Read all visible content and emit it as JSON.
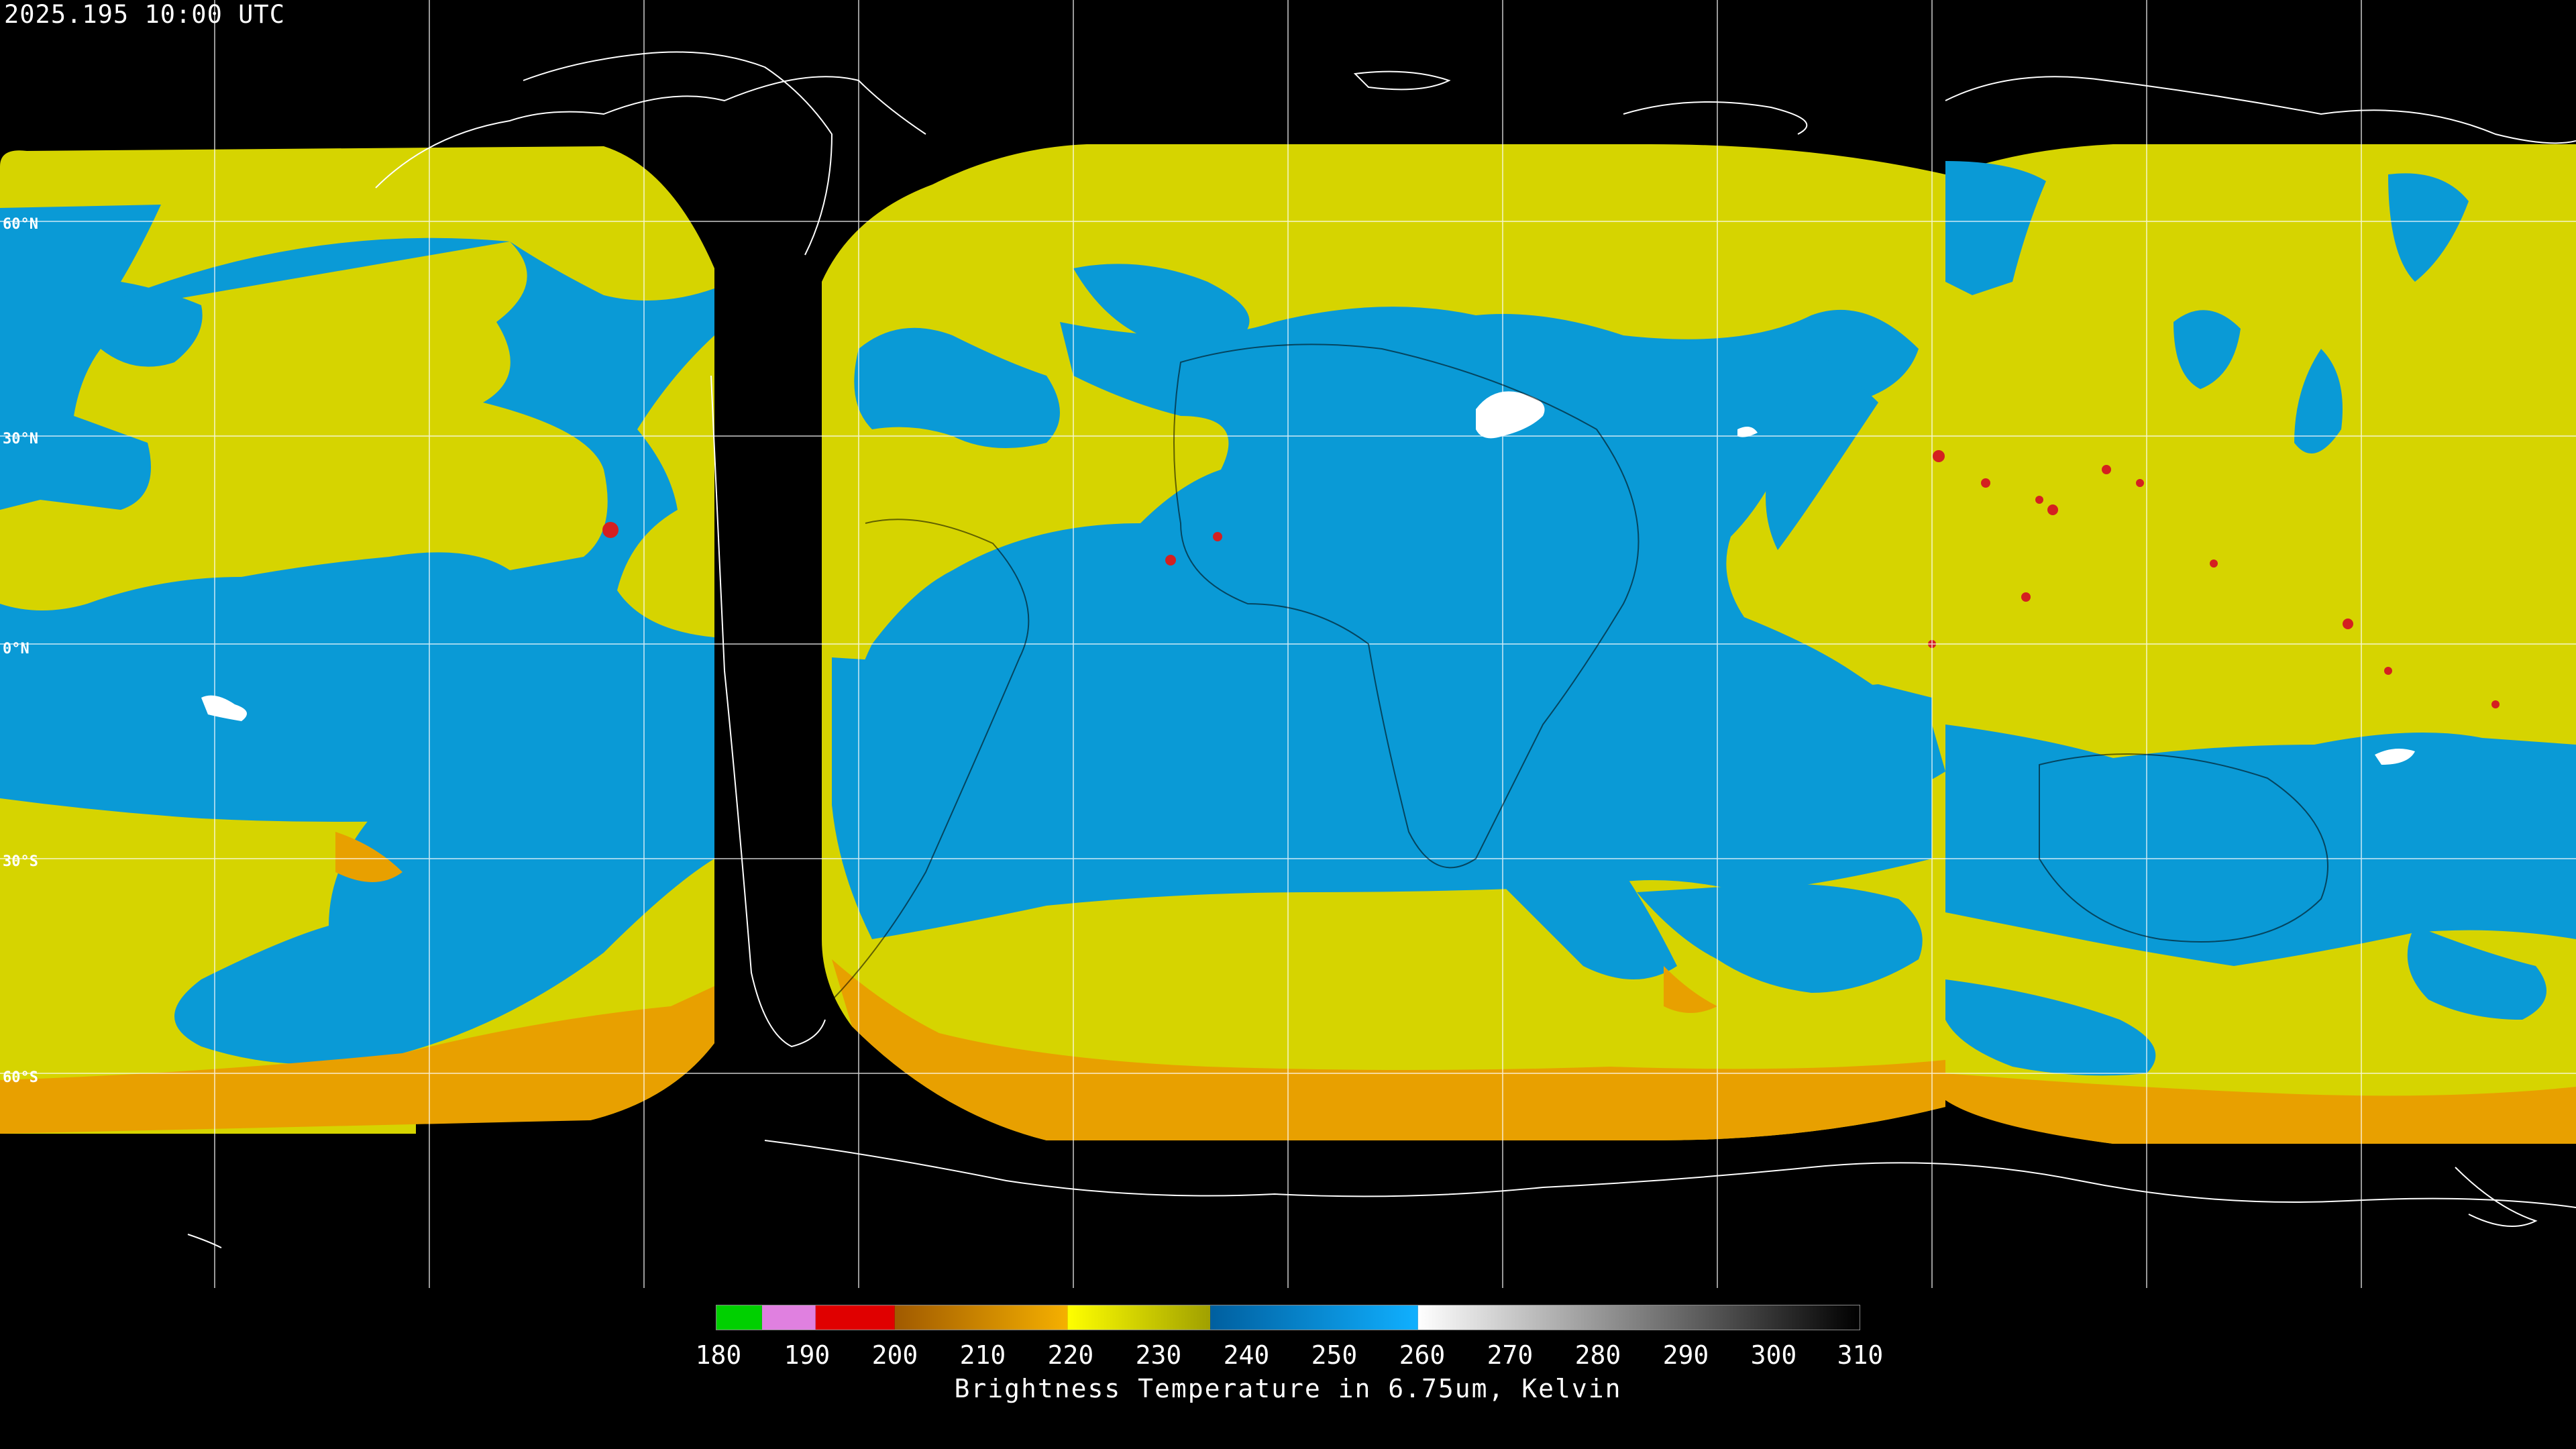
{
  "header": {
    "timestamp": "2025.195 10:00 UTC"
  },
  "lat_labels": [
    "60°N",
    "30°N",
    "0°N",
    "30°S",
    "60°S"
  ],
  "colorbar": {
    "ticks": [
      "180",
      "190",
      "200",
      "210",
      "220",
      "230",
      "240",
      "250",
      "260",
      "270",
      "280",
      "290",
      "300",
      "310"
    ],
    "caption": "Brightness Temperature in 6.75um, Kelvin",
    "range_kelvin": [
      180,
      310
    ]
  },
  "colors": {
    "background": "#000000",
    "water_vapor_moist": "#d4d400",
    "dry_air": "#0a9ad6",
    "cold_cloud_top": "#e8a000",
    "deep_convection": "#d42020",
    "coast_and_grid": "#ffffff"
  }
}
